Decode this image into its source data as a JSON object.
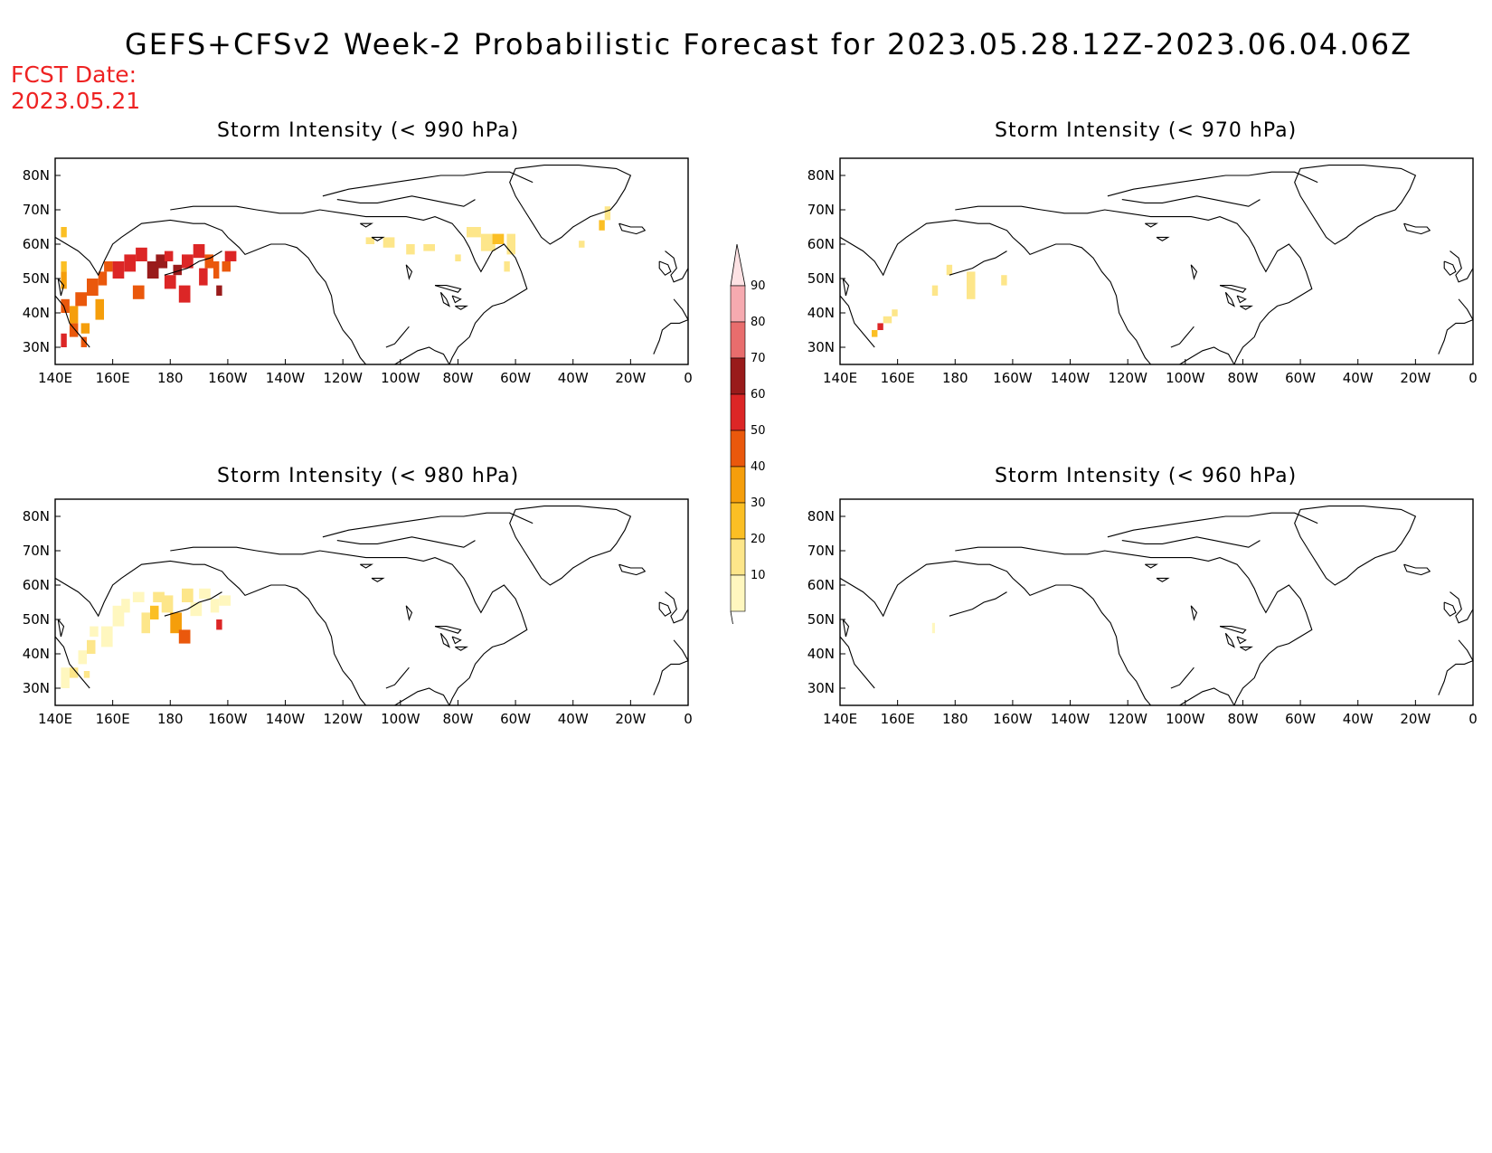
{
  "header": {
    "title": "GEFS+CFSv2 Week-2 Probabilistic Forecast for 2023.05.28.12Z-2023.06.04.06Z",
    "fcst_label": "FCST Date:",
    "fcst_date": "2023.05.21"
  },
  "axes": {
    "lon_ticks": [
      140,
      160,
      180,
      200,
      220,
      240,
      260,
      280,
      300,
      320,
      340,
      360
    ],
    "lon_labels": [
      "140E",
      "160E",
      "180",
      "160W",
      "140W",
      "120W",
      "100W",
      "80W",
      "60W",
      "40W",
      "20W",
      "0"
    ],
    "lat_ticks": [
      80,
      70,
      60,
      50,
      40,
      30
    ],
    "lat_labels": [
      "80N",
      "70N",
      "60N",
      "50N",
      "40N",
      "30N"
    ],
    "lon_range": [
      140,
      360
    ],
    "lat_range": [
      25,
      85
    ]
  },
  "colors": {
    "c10": "#fff7bf",
    "c20": "#fde68a",
    "c30": "#fbbf24",
    "c40": "#f59e0b",
    "c50": "#ea580c",
    "c60": "#dc2626",
    "c70": "#991b1b",
    "c80": "#e86d6d",
    "c90": "#f6aab0",
    "coast": "#000000"
  },
  "colorbar": {
    "labels": [
      "90",
      "80",
      "70",
      "60",
      "50",
      "40",
      "30",
      "20",
      "10"
    ],
    "colors": [
      "#f6aab0",
      "#e86d6d",
      "#991b1b",
      "#dc2626",
      "#ea580c",
      "#f59e0b",
      "#fbbf24",
      "#fde68a",
      "#fff7bf"
    ]
  },
  "panels": [
    {
      "title": "Storm Intensity (< 990 hPa)",
      "cells": [
        [
          142,
          52,
          2,
          3,
          "c30"
        ],
        [
          142,
          47,
          2,
          5,
          "c40"
        ],
        [
          142,
          40,
          3,
          4,
          "c50"
        ],
        [
          142,
          30,
          2,
          4,
          "c60"
        ],
        [
          145,
          33,
          3,
          4,
          "c50"
        ],
        [
          145,
          37,
          3,
          5,
          "c40"
        ],
        [
          147,
          42,
          4,
          4,
          "c50"
        ],
        [
          149,
          34,
          3,
          3,
          "c40"
        ],
        [
          151,
          45,
          4,
          5,
          "c50"
        ],
        [
          154,
          38,
          3,
          6,
          "c40"
        ],
        [
          155,
          48,
          3,
          4,
          "c50"
        ],
        [
          157,
          52,
          3,
          3,
          "c50"
        ],
        [
          160,
          50,
          4,
          5,
          "c60"
        ],
        [
          164,
          52,
          4,
          5,
          "c60"
        ],
        [
          167,
          44,
          4,
          4,
          "c50"
        ],
        [
          168,
          55,
          4,
          4,
          "c60"
        ],
        [
          172,
          50,
          4,
          5,
          "c70"
        ],
        [
          175,
          53,
          4,
          4,
          "c70"
        ],
        [
          178,
          47,
          4,
          4,
          "c60"
        ],
        [
          178,
          55,
          3,
          3,
          "c60"
        ],
        [
          181,
          51,
          3,
          3,
          "c70"
        ],
        [
          183,
          43,
          4,
          5,
          "c60"
        ],
        [
          184,
          53,
          4,
          4,
          "c60"
        ],
        [
          188,
          56,
          4,
          4,
          "c60"
        ],
        [
          190,
          48,
          3,
          5,
          "c60"
        ],
        [
          192,
          53,
          3,
          4,
          "c50"
        ],
        [
          195,
          50,
          2,
          5,
          "c50"
        ],
        [
          196,
          45,
          2,
          3,
          "c70"
        ],
        [
          198,
          52,
          3,
          3,
          "c50"
        ],
        [
          199,
          55,
          4,
          3,
          "c60"
        ],
        [
          149,
          30,
          2,
          3,
          "c50"
        ],
        [
          142,
          62,
          2,
          3,
          "c30"
        ],
        [
          248,
          60,
          3,
          2,
          "c20"
        ],
        [
          254,
          59,
          4,
          3,
          "c20"
        ],
        [
          262,
          57,
          3,
          3,
          "c20"
        ],
        [
          268,
          58,
          4,
          2,
          "c20"
        ],
        [
          279,
          55,
          2,
          2,
          "c20"
        ],
        [
          283,
          62,
          5,
          3,
          "c20"
        ],
        [
          288,
          58,
          5,
          5,
          "c20"
        ],
        [
          292,
          60,
          4,
          3,
          "c30"
        ],
        [
          297,
          57,
          3,
          6,
          "c20"
        ],
        [
          296,
          52,
          2,
          3,
          "c20"
        ],
        [
          329,
          64,
          2,
          3,
          "c30"
        ],
        [
          331,
          67,
          2,
          4,
          "c20"
        ],
        [
          322,
          59,
          2,
          2,
          "c20"
        ]
      ]
    },
    {
      "title": "Storm Intensity (< 970 hPa)",
      "cells": [
        [
          151,
          33,
          2,
          2,
          "c30"
        ],
        [
          153,
          35,
          2,
          2,
          "c60"
        ],
        [
          155,
          37,
          3,
          2,
          "c20"
        ],
        [
          158,
          39,
          2,
          2,
          "c20"
        ],
        [
          172,
          45,
          2,
          3,
          "c20"
        ],
        [
          177,
          51,
          2,
          3,
          "c20"
        ],
        [
          184,
          44,
          3,
          8,
          "c20"
        ],
        [
          196,
          48,
          2,
          3,
          "c20"
        ]
      ]
    },
    {
      "title": "Storm Intensity (< 980 hPa)",
      "cells": [
        [
          142,
          30,
          3,
          6,
          "c10"
        ],
        [
          145,
          33,
          3,
          3,
          "c20"
        ],
        [
          148,
          37,
          3,
          4,
          "c10"
        ],
        [
          151,
          40,
          3,
          4,
          "c20"
        ],
        [
          152,
          45,
          3,
          3,
          "c10"
        ],
        [
          156,
          42,
          4,
          6,
          "c10"
        ],
        [
          160,
          48,
          4,
          6,
          "c10"
        ],
        [
          163,
          52,
          3,
          4,
          "c10"
        ],
        [
          170,
          46,
          3,
          6,
          "c20"
        ],
        [
          173,
          50,
          3,
          4,
          "c30"
        ],
        [
          174,
          55,
          4,
          3,
          "c20"
        ],
        [
          177,
          52,
          4,
          5,
          "c20"
        ],
        [
          180,
          46,
          4,
          6,
          "c40"
        ],
        [
          183,
          43,
          4,
          4,
          "c50"
        ],
        [
          184,
          55,
          4,
          4,
          "c20"
        ],
        [
          187,
          51,
          4,
          4,
          "c10"
        ],
        [
          190,
          56,
          4,
          3,
          "c10"
        ],
        [
          194,
          52,
          3,
          4,
          "c10"
        ],
        [
          196,
          47,
          2,
          3,
          "c60"
        ],
        [
          197,
          54,
          4,
          3,
          "c10"
        ],
        [
          167,
          55,
          4,
          3,
          "c10"
        ],
        [
          150,
          33,
          2,
          2,
          "c20"
        ]
      ]
    },
    {
      "title": "Storm Intensity (< 960 hPa)",
      "cells": [
        [
          172,
          46,
          1,
          3,
          "c10"
        ]
      ]
    }
  ]
}
